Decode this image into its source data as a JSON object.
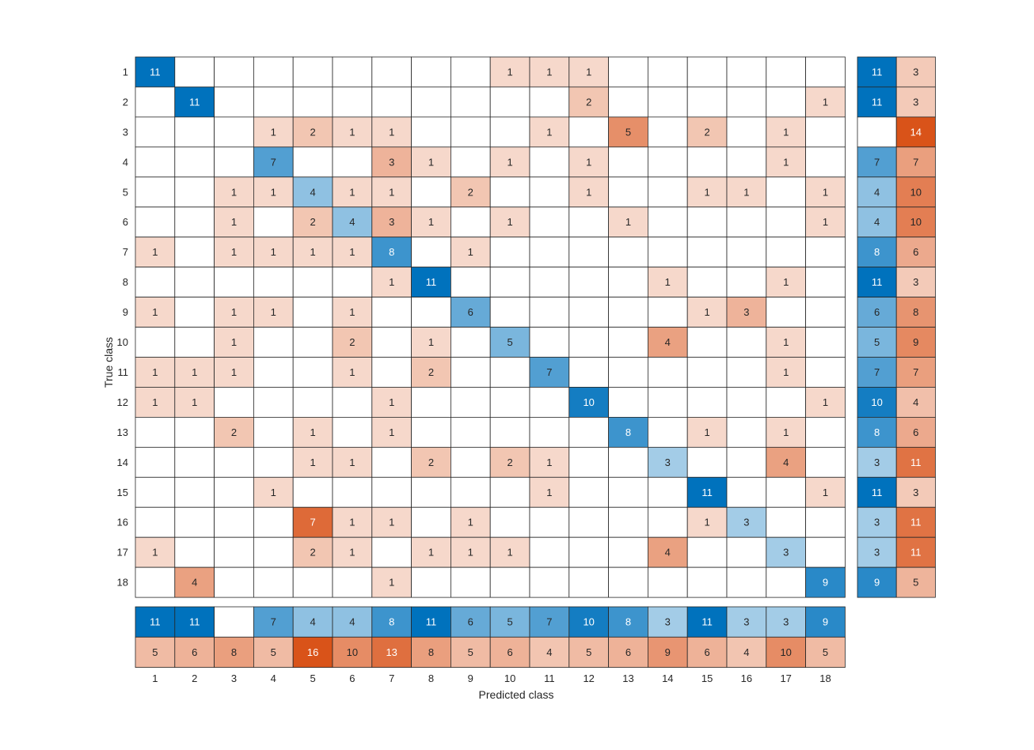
{
  "chart_data": {
    "type": "heatmap",
    "chart_kind": "confusion-matrix",
    "xlabel": "Predicted class",
    "ylabel": "True class",
    "classes": [
      "1",
      "2",
      "3",
      "4",
      "5",
      "6",
      "7",
      "8",
      "9",
      "10",
      "11",
      "12",
      "13",
      "14",
      "15",
      "16",
      "17",
      "18"
    ],
    "matrix": [
      [
        11,
        0,
        0,
        0,
        0,
        0,
        0,
        0,
        0,
        1,
        1,
        1,
        0,
        0,
        0,
        0,
        0,
        0
      ],
      [
        0,
        11,
        0,
        0,
        0,
        0,
        0,
        0,
        0,
        0,
        0,
        2,
        0,
        0,
        0,
        0,
        0,
        1
      ],
      [
        0,
        0,
        0,
        1,
        2,
        1,
        1,
        0,
        0,
        0,
        1,
        0,
        5,
        0,
        2,
        0,
        1,
        0
      ],
      [
        0,
        0,
        0,
        7,
        0,
        0,
        3,
        1,
        0,
        1,
        0,
        1,
        0,
        0,
        0,
        0,
        1,
        0
      ],
      [
        0,
        0,
        1,
        1,
        4,
        1,
        1,
        0,
        2,
        0,
        0,
        1,
        0,
        0,
        1,
        1,
        0,
        1
      ],
      [
        0,
        0,
        1,
        0,
        2,
        4,
        3,
        1,
        0,
        1,
        0,
        0,
        1,
        0,
        0,
        0,
        0,
        1
      ],
      [
        1,
        0,
        1,
        1,
        1,
        1,
        8,
        0,
        1,
        0,
        0,
        0,
        0,
        0,
        0,
        0,
        0,
        0
      ],
      [
        0,
        0,
        0,
        0,
        0,
        0,
        1,
        11,
        0,
        0,
        0,
        0,
        0,
        1,
        0,
        0,
        1,
        0
      ],
      [
        1,
        0,
        1,
        1,
        0,
        1,
        0,
        0,
        6,
        0,
        0,
        0,
        0,
        0,
        1,
        3,
        0,
        0
      ],
      [
        0,
        0,
        1,
        0,
        0,
        2,
        0,
        1,
        0,
        5,
        0,
        0,
        0,
        4,
        0,
        0,
        1,
        0
      ],
      [
        1,
        1,
        1,
        0,
        0,
        1,
        0,
        2,
        0,
        0,
        7,
        0,
        0,
        0,
        0,
        0,
        1,
        0
      ],
      [
        1,
        1,
        0,
        0,
        0,
        0,
        1,
        0,
        0,
        0,
        0,
        10,
        0,
        0,
        0,
        0,
        0,
        1
      ],
      [
        0,
        0,
        2,
        0,
        1,
        0,
        1,
        0,
        0,
        0,
        0,
        0,
        8,
        0,
        1,
        0,
        1,
        0
      ],
      [
        0,
        0,
        0,
        0,
        1,
        1,
        0,
        2,
        0,
        2,
        1,
        0,
        0,
        3,
        0,
        0,
        4,
        0
      ],
      [
        0,
        0,
        0,
        1,
        0,
        0,
        0,
        0,
        0,
        0,
        1,
        0,
        0,
        0,
        11,
        0,
        0,
        1
      ],
      [
        0,
        0,
        0,
        0,
        7,
        1,
        1,
        0,
        1,
        0,
        0,
        0,
        0,
        0,
        1,
        3,
        0,
        0
      ],
      [
        1,
        0,
        0,
        0,
        2,
        1,
        0,
        1,
        1,
        1,
        0,
        0,
        0,
        4,
        0,
        0,
        3,
        0
      ],
      [
        0,
        4,
        0,
        0,
        0,
        0,
        1,
        0,
        0,
        0,
        0,
        0,
        0,
        0,
        0,
        0,
        0,
        9
      ]
    ],
    "row_summary": {
      "correct": [
        11,
        11,
        0,
        7,
        4,
        4,
        8,
        11,
        6,
        5,
        7,
        10,
        8,
        3,
        11,
        3,
        3,
        9
      ],
      "incorrect": [
        3,
        3,
        14,
        7,
        10,
        10,
        6,
        3,
        8,
        9,
        7,
        4,
        6,
        11,
        3,
        11,
        11,
        5
      ]
    },
    "column_summary": {
      "correct": [
        11,
        11,
        0,
        7,
        4,
        4,
        8,
        11,
        6,
        5,
        7,
        10,
        8,
        3,
        11,
        3,
        3,
        9
      ],
      "incorrect": [
        5,
        6,
        8,
        5,
        16,
        10,
        13,
        8,
        5,
        6,
        4,
        5,
        6,
        9,
        6,
        4,
        10,
        5
      ]
    },
    "colors": {
      "correct_dark": "#0072bd",
      "incorrect_dark": "#d95319",
      "background": "#ffffff",
      "grid": "#262626",
      "text_dark": "#262626",
      "text_light": "#ffffff"
    }
  }
}
